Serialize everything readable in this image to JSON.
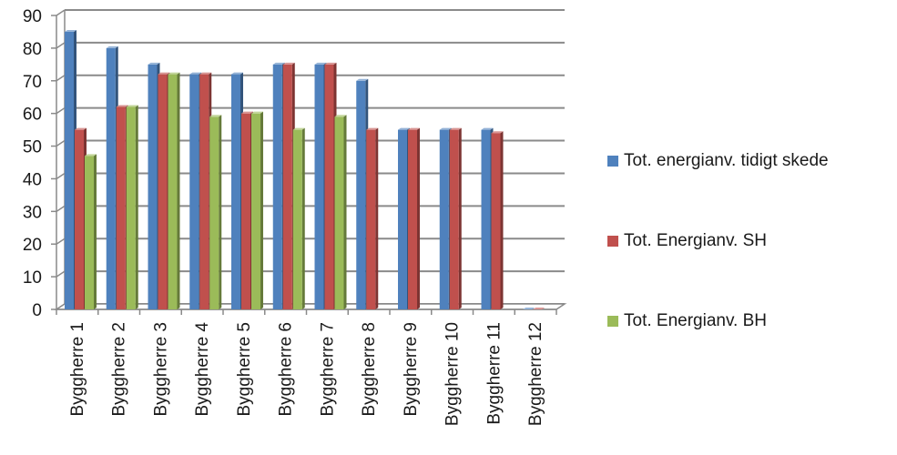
{
  "chart_data": {
    "type": "bar",
    "title": "",
    "xlabel": "",
    "ylabel": "",
    "ylim": [
      0,
      90
    ],
    "yticks": [
      0,
      10,
      20,
      30,
      40,
      50,
      60,
      70,
      80,
      90
    ],
    "grid": true,
    "legend_position": "right",
    "categories": [
      "Byggherre 1",
      "Byggherre 2",
      "Byggherre 3",
      "Byggherre 4",
      "Byggherre 5",
      "Byggherre 6",
      "Byggherre 7",
      "Byggherre 8",
      "Byggherre 9",
      "Byggherre 10",
      "Byggherre 11",
      "Byggherre 12"
    ],
    "series": [
      {
        "name": "Tot. energianv. tidigt skede",
        "color": "#4F81BD",
        "values": [
          85,
          80,
          75,
          72,
          72,
          75,
          75,
          70,
          55,
          55,
          55,
          0
        ]
      },
      {
        "name": "Tot. Energianv. SH",
        "color": "#C0504D",
        "values": [
          55,
          62,
          72,
          72,
          60,
          75,
          75,
          55,
          55,
          55,
          54,
          0
        ]
      },
      {
        "name": "Tot. Energianv. BH",
        "color": "#9BBB59",
        "values": [
          47,
          62,
          72,
          59,
          60,
          55,
          59,
          null,
          null,
          null,
          null,
          null
        ]
      }
    ]
  }
}
